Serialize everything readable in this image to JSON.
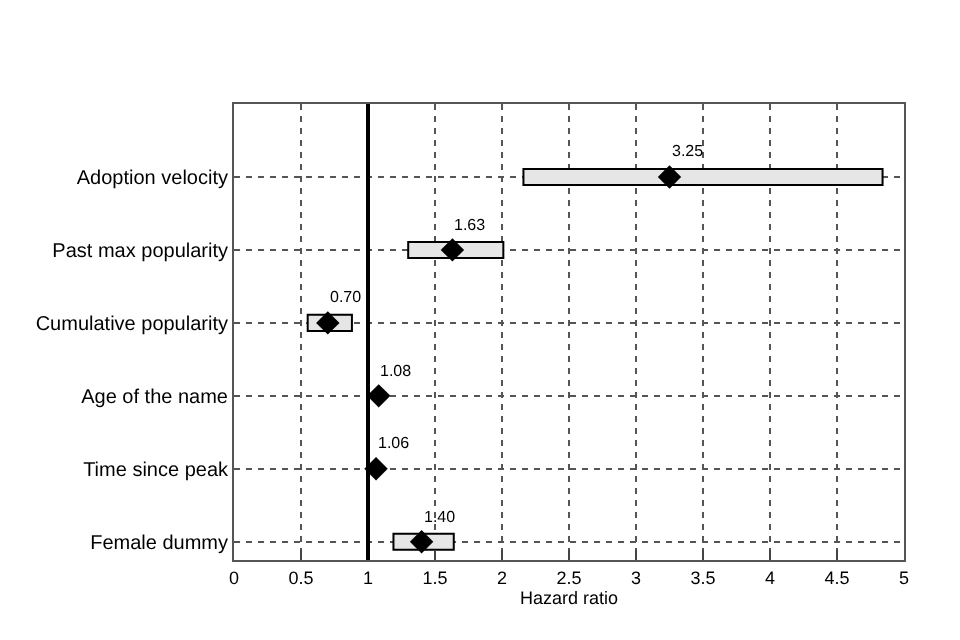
{
  "chart_data": {
    "type": "bar",
    "orientation": "horizontal",
    "xlabel": "Hazard ratio",
    "categories": [
      "Adoption velocity",
      "Past max popularity",
      "Cumulative popularity",
      "Age of the name",
      "Time since peak",
      "Female dummy"
    ],
    "series": [
      {
        "color": "#e6e6e6",
        "base": [
          2.16,
          1.3,
          0.55,
          null,
          null,
          1.19
        ],
        "values": [
          2.68,
          0.71,
          0.33,
          null,
          null,
          0.45
        ]
      },
      {
        "type": "scatter",
        "color": "#000000",
        "marker": "diamond",
        "values": [
          3.25,
          1.63,
          0.7,
          1.08,
          1.06,
          1.4
        ],
        "value_labels": [
          "3.25",
          "1.63",
          "0.70",
          "1.08",
          "1.06",
          "1.40"
        ]
      }
    ],
    "xlim": [
      0,
      5
    ],
    "xticks": [
      0,
      0.5,
      1,
      1.5,
      2,
      2.5,
      3,
      3.5,
      4,
      4.5,
      5
    ],
    "ref_lines": [
      {
        "axis": "x",
        "value": 1,
        "color": "#000000",
        "line_style": "solid"
      }
    ],
    "grid": true
  }
}
